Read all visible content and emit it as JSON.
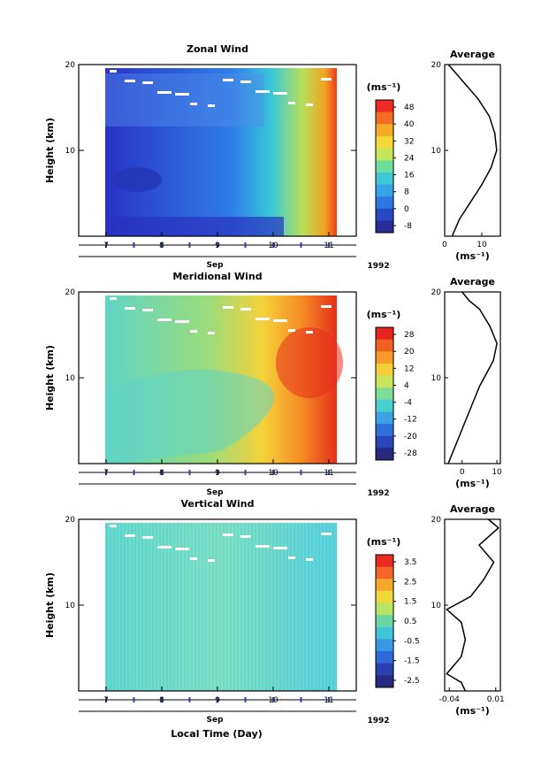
{
  "chart_data": [
    {
      "type": "heatmap",
      "title": "Zonal Wind",
      "ylabel": "Height (km)",
      "yticks": [
        "20",
        "10"
      ],
      "xlabel": "Sep",
      "xticks": [
        "7",
        "8",
        "9",
        "10",
        "11"
      ],
      "year": "1992",
      "colorbar": {
        "unit": "(ms⁻¹)",
        "labels": [
          "48",
          "40",
          "32",
          "24",
          "16",
          "8",
          "0",
          "-8"
        ]
      },
      "profile": {
        "title": "Average",
        "xticks": [
          "0",
          "10"
        ],
        "yticks": [
          "20",
          "10"
        ],
        "xlabel": "(ms⁻¹)",
        "xrange": [
          0,
          15
        ],
        "points": [
          [
            2,
            0
          ],
          [
            4,
            2
          ],
          [
            7,
            4
          ],
          [
            10,
            6
          ],
          [
            12.5,
            8
          ],
          [
            14,
            10
          ],
          [
            13.5,
            12
          ],
          [
            12,
            14
          ],
          [
            9,
            16
          ],
          [
            5,
            18
          ],
          [
            1,
            20
          ]
        ]
      }
    },
    {
      "type": "heatmap",
      "title": "Meridional Wind",
      "ylabel": "Height (km)",
      "yticks": [
        "20",
        "10"
      ],
      "xlabel": "Sep",
      "xticks": [
        "7",
        "8",
        "9",
        "10",
        "11"
      ],
      "year": "1992",
      "colorbar": {
        "unit": "(ms⁻¹)",
        "labels": [
          "28",
          "20",
          "12",
          "4",
          "-4",
          "-12",
          "-20",
          "-28"
        ]
      },
      "profile": {
        "title": "Average",
        "xticks": [
          "0",
          "10"
        ],
        "yticks": [
          "20",
          "10"
        ],
        "xlabel": "(ms⁻¹)",
        "xrange": [
          -5,
          11
        ],
        "points": [
          [
            -4,
            0
          ],
          [
            -3,
            1
          ],
          [
            -1,
            3
          ],
          [
            1,
            5
          ],
          [
            3,
            7
          ],
          [
            5,
            9
          ],
          [
            7,
            10.5
          ],
          [
            9,
            12
          ],
          [
            10,
            14
          ],
          [
            8,
            16
          ],
          [
            5,
            18
          ],
          [
            2,
            19
          ],
          [
            0,
            20
          ]
        ]
      }
    },
    {
      "type": "heatmap",
      "title": "Vertical Wind",
      "ylabel": "Height (km)",
      "yticks": [
        "20",
        "10"
      ],
      "xlabel": "Sep",
      "xticks": [
        "7",
        "8",
        "9",
        "10",
        "11"
      ],
      "year": "1992",
      "xaxis_title": "Local Time (Day)",
      "colorbar": {
        "unit": "(ms⁻¹)",
        "labels": [
          "3.5",
          "2.5",
          "1.5",
          "0.5",
          "-0.5",
          "-1.5",
          "-2.5"
        ]
      },
      "profile": {
        "title": "Average",
        "xticks": [
          "-0.04",
          "0.01"
        ],
        "yticks": [
          "20",
          "10"
        ],
        "xlabel": "(ms⁻¹)",
        "xrange": [
          -0.045,
          0.015
        ],
        "points": [
          [
            -0.02,
            0
          ],
          [
            -0.03,
            1
          ],
          [
            -0.04,
            2
          ],
          [
            -0.03,
            4
          ],
          [
            -0.02,
            6
          ],
          [
            -0.03,
            8
          ],
          [
            -0.04,
            9.5
          ],
          [
            -0.02,
            11
          ],
          [
            0.0,
            13
          ],
          [
            0.005,
            15
          ],
          [
            -0.005,
            17
          ],
          [
            0.01,
            19
          ],
          [
            0.005,
            20
          ]
        ]
      }
    }
  ]
}
